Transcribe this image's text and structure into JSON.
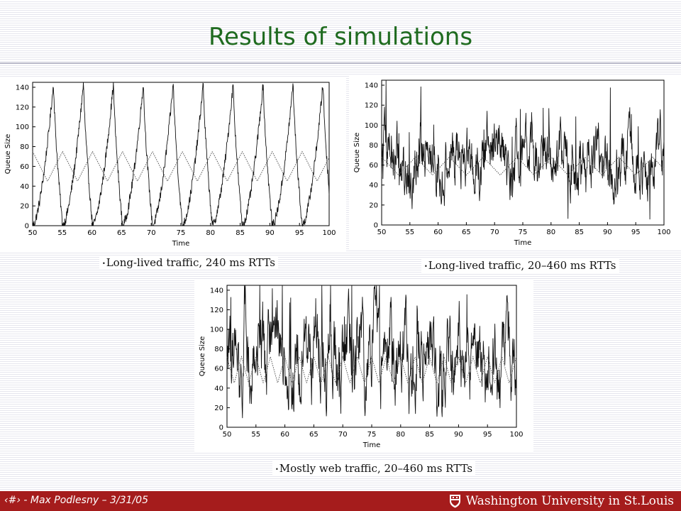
{
  "slide": {
    "title": "Results of simulations",
    "footer_text": "‹#› - Max Podlesny – 3/31/05",
    "footer_logo_text": "Washington University in St.Louis"
  },
  "colors": {
    "title": "#1f6b1f",
    "footer_bg": "#a51c1c"
  },
  "chart_data": [
    {
      "type": "line",
      "caption": "Long-lived traffic, 240 ms RTTs",
      "ylabel": "Queue Size",
      "xlabel": "Time",
      "xlim": [
        50,
        100
      ],
      "ylim": [
        0,
        145
      ],
      "xticks": [
        "50",
        "55",
        "60",
        "65",
        "70",
        "75",
        "80",
        "85",
        "90",
        "95",
        "100"
      ],
      "yticks": [
        "0",
        "20",
        "40",
        "60",
        "80",
        "100",
        "120",
        "140"
      ],
      "series": [
        {
          "style": "solid",
          "pattern": "sawtooth",
          "period": 5.05,
          "min": 0,
          "max": 145,
          "noise": 10
        },
        {
          "style": "dotted",
          "pattern": "triangle",
          "period": 5.05,
          "min": 45,
          "max": 75,
          "noise": 0
        }
      ]
    },
    {
      "type": "line",
      "caption": "Long-lived traffic, 20–460 ms RTTs",
      "ylabel": "Queue Size",
      "xlabel": "Time",
      "xlim": [
        50,
        100
      ],
      "ylim": [
        0,
        145
      ],
      "xticks": [
        "50",
        "55",
        "60",
        "65",
        "70",
        "75",
        "80",
        "85",
        "90",
        "95",
        "100"
      ],
      "yticks": [
        "0",
        "20",
        "40",
        "60",
        "80",
        "100",
        "120",
        "140"
      ],
      "series": [
        {
          "style": "solid",
          "pattern": "noise",
          "period": 6,
          "min": 5,
          "max": 130,
          "noise": 40
        },
        {
          "style": "dotted",
          "pattern": "triangle",
          "period": 6,
          "min": 50,
          "max": 68,
          "noise": 0
        }
      ]
    },
    {
      "type": "line",
      "caption": "Mostly web traffic, 20–460 ms RTTs",
      "ylabel": "Queue Size",
      "xlabel": "Time",
      "xlim": [
        50,
        100
      ],
      "ylim": [
        0,
        145
      ],
      "xticks": [
        "50",
        "55",
        "60",
        "65",
        "70",
        "75",
        "80",
        "85",
        "90",
        "95",
        "100"
      ],
      "yticks": [
        "0",
        "20",
        "40",
        "60",
        "80",
        "100",
        "120",
        "140"
      ],
      "series": [
        {
          "style": "solid",
          "pattern": "noise",
          "period": 2.5,
          "min": 0,
          "max": 145,
          "noise": 55
        },
        {
          "style": "dotted",
          "pattern": "triangle",
          "period": 2.5,
          "min": 45,
          "max": 72,
          "noise": 0
        }
      ]
    }
  ]
}
